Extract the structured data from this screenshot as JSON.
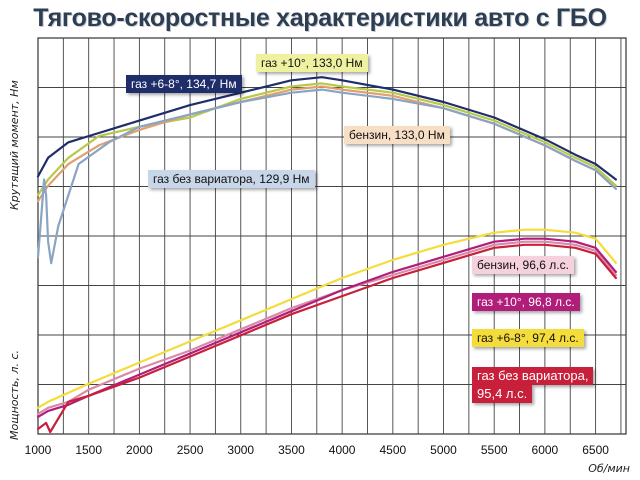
{
  "chart_data": {
    "type": "line",
    "title": "Тягово-скоростные характеристики авто с ГБО",
    "xlabel": "Об/мин",
    "ylabel_top": "Крутящий момент, Нм",
    "ylabel_bottom": "Мощность, л. с.",
    "xlim": [
      1000,
      6800
    ],
    "x_ticks": [
      "1000",
      "1500",
      "2000",
      "2500",
      "3000",
      "3500",
      "4000",
      "4500",
      "5000",
      "5500",
      "6000",
      "6500"
    ],
    "grid": true,
    "torque_series": [
      {
        "name": "газ +6-8°, 134,7 Нм",
        "color": "#1f2d6b",
        "x": [
          1000,
          1100,
          1300,
          1600,
          2000,
          2500,
          3000,
          3500,
          3800,
          4000,
          4500,
          5000,
          5500,
          6000,
          6300,
          6500,
          6700
        ],
        "y": [
          0.56,
          0.62,
          0.67,
          0.7,
          0.74,
          0.79,
          0.83,
          0.87,
          0.88,
          0.87,
          0.84,
          0.8,
          0.75,
          0.68,
          0.63,
          0.6,
          0.55
        ]
      },
      {
        "name": "газ +10°, 133,0 Нм",
        "color": "#b8c84a",
        "x": [
          1000,
          1100,
          1300,
          1600,
          2000,
          2500,
          3000,
          3500,
          3800,
          4000,
          4500,
          5000,
          5500,
          6000,
          6300,
          6500,
          6700
        ],
        "y": [
          0.5,
          0.55,
          0.62,
          0.69,
          0.72,
          0.75,
          0.81,
          0.85,
          0.86,
          0.85,
          0.83,
          0.79,
          0.74,
          0.67,
          0.62,
          0.59,
          0.53
        ]
      },
      {
        "name": "бензин, 133,0 Нм",
        "color": "#e0a070",
        "x": [
          1000,
          1100,
          1300,
          1600,
          2000,
          2500,
          3000,
          3500,
          3800,
          4000,
          4500,
          5000,
          5500,
          6000,
          6300,
          6500,
          6700
        ],
        "y": [
          0.48,
          0.53,
          0.6,
          0.66,
          0.71,
          0.76,
          0.8,
          0.84,
          0.85,
          0.84,
          0.82,
          0.78,
          0.73,
          0.66,
          0.61,
          0.58,
          0.52
        ]
      },
      {
        "name": "газ без вариатора, 129,9 Нм",
        "color": "#8aa4c4",
        "x": [
          1000,
          1030,
          1060,
          1080,
          1100,
          1130,
          1200,
          1400,
          1700,
          2000,
          2500,
          3000,
          3500,
          3800,
          4000,
          4500,
          5000,
          5500,
          6000,
          6300,
          6500,
          6700
        ],
        "y": [
          0.3,
          0.42,
          0.55,
          0.5,
          0.35,
          0.28,
          0.4,
          0.6,
          0.67,
          0.72,
          0.76,
          0.8,
          0.83,
          0.84,
          0.83,
          0.81,
          0.78,
          0.73,
          0.66,
          0.61,
          0.58,
          0.52
        ]
      }
    ],
    "power_series": [
      {
        "name": "бензин, 96,6 л.с.",
        "color": "#d88aa8",
        "x": [
          1000,
          1100,
          1300,
          1500,
          2000,
          2500,
          3000,
          3500,
          4000,
          4500,
          5000,
          5500,
          5800,
          6000,
          6300,
          6500,
          6700
        ],
        "y": [
          0.06,
          0.08,
          0.1,
          0.14,
          0.21,
          0.27,
          0.34,
          0.41,
          0.47,
          0.52,
          0.57,
          0.62,
          0.63,
          0.63,
          0.62,
          0.6,
          0.52
        ]
      },
      {
        "name": "газ +10°, 96,8 л.с.",
        "color": "#b01e7a",
        "x": [
          1000,
          1100,
          1300,
          1500,
          2000,
          2500,
          3000,
          3500,
          4000,
          4500,
          5000,
          5500,
          5800,
          6000,
          6300,
          6500,
          6700
        ],
        "y": [
          0.05,
          0.07,
          0.09,
          0.12,
          0.19,
          0.26,
          0.33,
          0.4,
          0.47,
          0.53,
          0.58,
          0.63,
          0.64,
          0.64,
          0.63,
          0.61,
          0.53
        ]
      },
      {
        "name": "газ +6-8°, 97,4 л.с.",
        "color": "#f4dc3a",
        "x": [
          1000,
          1100,
          1300,
          1500,
          2000,
          2500,
          3000,
          3500,
          4000,
          4500,
          5000,
          5500,
          5800,
          6000,
          6300,
          6500,
          6700
        ],
        "y": [
          0.08,
          0.1,
          0.13,
          0.16,
          0.23,
          0.3,
          0.37,
          0.44,
          0.51,
          0.57,
          0.62,
          0.66,
          0.67,
          0.67,
          0.66,
          0.64,
          0.56
        ]
      },
      {
        "name": "газ без вариатора, 95,4 л.с.",
        "color": "#c8203a",
        "x": [
          1000,
          1080,
          1120,
          1300,
          1500,
          2000,
          2500,
          3000,
          3500,
          4000,
          4500,
          5000,
          5500,
          5800,
          6000,
          6300,
          6500,
          6700
        ],
        "y": [
          0.01,
          0.03,
          0.0,
          0.1,
          0.12,
          0.18,
          0.25,
          0.32,
          0.39,
          0.45,
          0.51,
          0.56,
          0.61,
          0.62,
          0.62,
          0.61,
          0.59,
          0.51
        ]
      }
    ],
    "labels": {
      "t1": {
        "text": "газ +6-8°, 134,7 Нм",
        "bg": "#1f2d6b",
        "fg": "#ffffff"
      },
      "t2": {
        "text": "газ +10°, 133,0 Нм",
        "bg": "#eef2a0",
        "fg": "#111111"
      },
      "t3": {
        "text": "бензин, 133,0 Нм",
        "bg": "#f7dfc6",
        "fg": "#111111"
      },
      "t4": {
        "text": "газ без вариатора, 129,9 Нм",
        "bg": "#c8d6ea",
        "fg": "#111111"
      },
      "p1": {
        "text": "бензин, 96,6 л.с.",
        "bg": "#f5d0dd",
        "fg": "#111111"
      },
      "p2": {
        "text": "газ +10°, 96,8 л.с.",
        "bg": "#b01e7a",
        "fg": "#ffffff"
      },
      "p3": {
        "text": "газ +6-8°, 97,4 л.с.",
        "bg": "#f4dc3a",
        "fg": "#111111"
      },
      "p4a": {
        "text": "газ без вариатора,",
        "bg": "#c8203a",
        "fg": "#ffffff"
      },
      "p4b": {
        "text": "95,4 л.с.",
        "bg": "#c8203a",
        "fg": "#ffffff"
      }
    }
  }
}
